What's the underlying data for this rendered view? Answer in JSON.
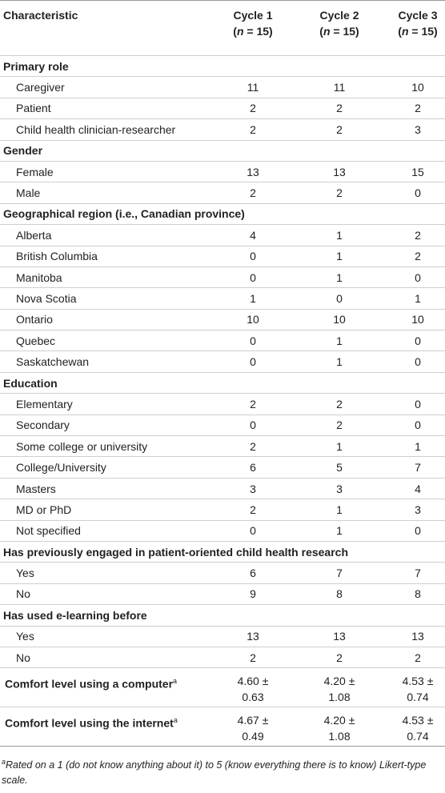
{
  "header": {
    "characteristic": "Characteristic",
    "cycles": [
      {
        "label": "Cycle 1",
        "n_open": "(",
        "n": "n",
        "n_close": " = 15)"
      },
      {
        "label": "Cycle 2",
        "n_open": "(",
        "n": "n",
        "n_close": " = 15)"
      },
      {
        "label": "Cycle 3",
        "n_open": "(",
        "n": "n",
        "n_close": " = 15)"
      }
    ]
  },
  "sections": [
    {
      "title": "Primary role",
      "rows": [
        [
          "Caregiver",
          "11",
          "11",
          "10"
        ],
        [
          "Patient",
          "2",
          "2",
          "2"
        ],
        [
          "Child health clinician-researcher",
          "2",
          "2",
          "3"
        ]
      ]
    },
    {
      "title": "Gender",
      "rows": [
        [
          "Female",
          "13",
          "13",
          "15"
        ],
        [
          "Male",
          "2",
          "2",
          "0"
        ]
      ]
    },
    {
      "title": "Geographical region (i.e., Canadian province)",
      "rows": [
        [
          "Alberta",
          "4",
          "1",
          "2"
        ],
        [
          "British Columbia",
          "0",
          "1",
          "2"
        ],
        [
          "Manitoba",
          "0",
          "1",
          "0"
        ],
        [
          "Nova Scotia",
          "1",
          "0",
          "1"
        ],
        [
          "Ontario",
          "10",
          "10",
          "10"
        ],
        [
          "Quebec",
          "0",
          "1",
          "0"
        ],
        [
          "Saskatchewan",
          "0",
          "1",
          "0"
        ]
      ]
    },
    {
      "title": "Education",
      "rows": [
        [
          "Elementary",
          "2",
          "2",
          "0"
        ],
        [
          "Secondary",
          "0",
          "2",
          "0"
        ],
        [
          "Some college or university",
          "2",
          "1",
          "1"
        ],
        [
          "College/University",
          "6",
          "5",
          "7"
        ],
        [
          "Masters",
          "3",
          "3",
          "4"
        ],
        [
          "MD or PhD",
          "2",
          "1",
          "3"
        ],
        [
          "Not specified",
          "0",
          "1",
          "0"
        ]
      ]
    },
    {
      "title": "Has previously engaged in patient-oriented child health research",
      "rows": [
        [
          "Yes",
          "6",
          "7",
          "7"
        ],
        [
          "No",
          "9",
          "8",
          "8"
        ]
      ]
    },
    {
      "title": "Has used e-learning before",
      "rows": [
        [
          "Yes",
          "13",
          "13",
          "13"
        ],
        [
          "No",
          "2",
          "2",
          "2"
        ]
      ]
    }
  ],
  "summary_rows": [
    {
      "label": "Comfort level using a computer",
      "sup": "a",
      "values": [
        "4.60 ± 0.63",
        "4.20 ± 1.08",
        "4.53 ± 0.74"
      ]
    },
    {
      "label": "Comfort level using the internet",
      "sup": "a",
      "values": [
        "4.67 ± 0.49",
        "4.20 ± 1.08",
        "4.53 ± 0.74"
      ]
    }
  ],
  "footnote": {
    "sup": "a",
    "text": "Rated on a 1 (do not know anything about it) to 5 (know everything there is to know) Likert-type scale."
  }
}
